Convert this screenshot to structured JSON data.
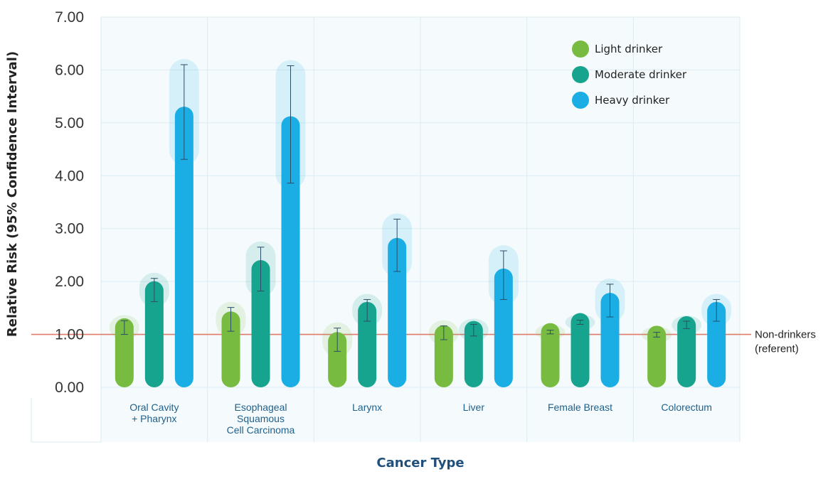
{
  "chart_data": {
    "type": "bar",
    "title": "",
    "xlabel": "Cancer Type",
    "ylabel": "Relative Risk (95% Confidence Interval)",
    "ylim": [
      0,
      7
    ],
    "yticks": [
      "0.00",
      "1.00",
      "2.00",
      "3.00",
      "4.00",
      "5.00",
      "6.00",
      "7.00"
    ],
    "grid": true,
    "legend_position": "top-right",
    "categories": [
      [
        "Oral Cavity",
        "+ Pharynx"
      ],
      [
        "Esophageal",
        "Squamous",
        "Cell Carcinoma"
      ],
      [
        "Larynx"
      ],
      [
        "Liver"
      ],
      [
        "Female Breast"
      ],
      [
        "Colorectum"
      ]
    ],
    "series": [
      {
        "name": "Light drinker",
        "color": "#77bb41",
        "values": [
          1.13,
          1.26,
          0.87,
          1.0,
          1.04,
          0.99
        ],
        "ci_low": [
          1.0,
          1.06,
          0.68,
          0.9,
          1.01,
          0.95
        ],
        "ci_high": [
          1.26,
          1.51,
          1.12,
          1.16,
          1.08,
          1.04
        ]
      },
      {
        "name": "Moderate drinker",
        "color": "#17a48f",
        "values": [
          1.83,
          2.23,
          1.44,
          1.08,
          1.23,
          1.17
        ],
        "ci_low": [
          1.62,
          1.82,
          1.25,
          0.97,
          1.19,
          1.11
        ],
        "ci_high": [
          2.06,
          2.65,
          1.66,
          1.19,
          1.27,
          1.25
        ]
      },
      {
        "name": "Heavy drinker",
        "color": "#1aaee5",
        "values": [
          5.13,
          4.95,
          2.65,
          2.07,
          1.61,
          1.44
        ],
        "ci_low": [
          4.31,
          3.86,
          2.19,
          1.66,
          1.33,
          1.25
        ],
        "ci_high": [
          6.1,
          6.08,
          3.18,
          2.58,
          1.95,
          1.66
        ]
      }
    ],
    "reference_line": {
      "value": 1.0,
      "color": "#e07b6a",
      "label": [
        "Non-drinkers",
        "(referent)"
      ]
    }
  }
}
